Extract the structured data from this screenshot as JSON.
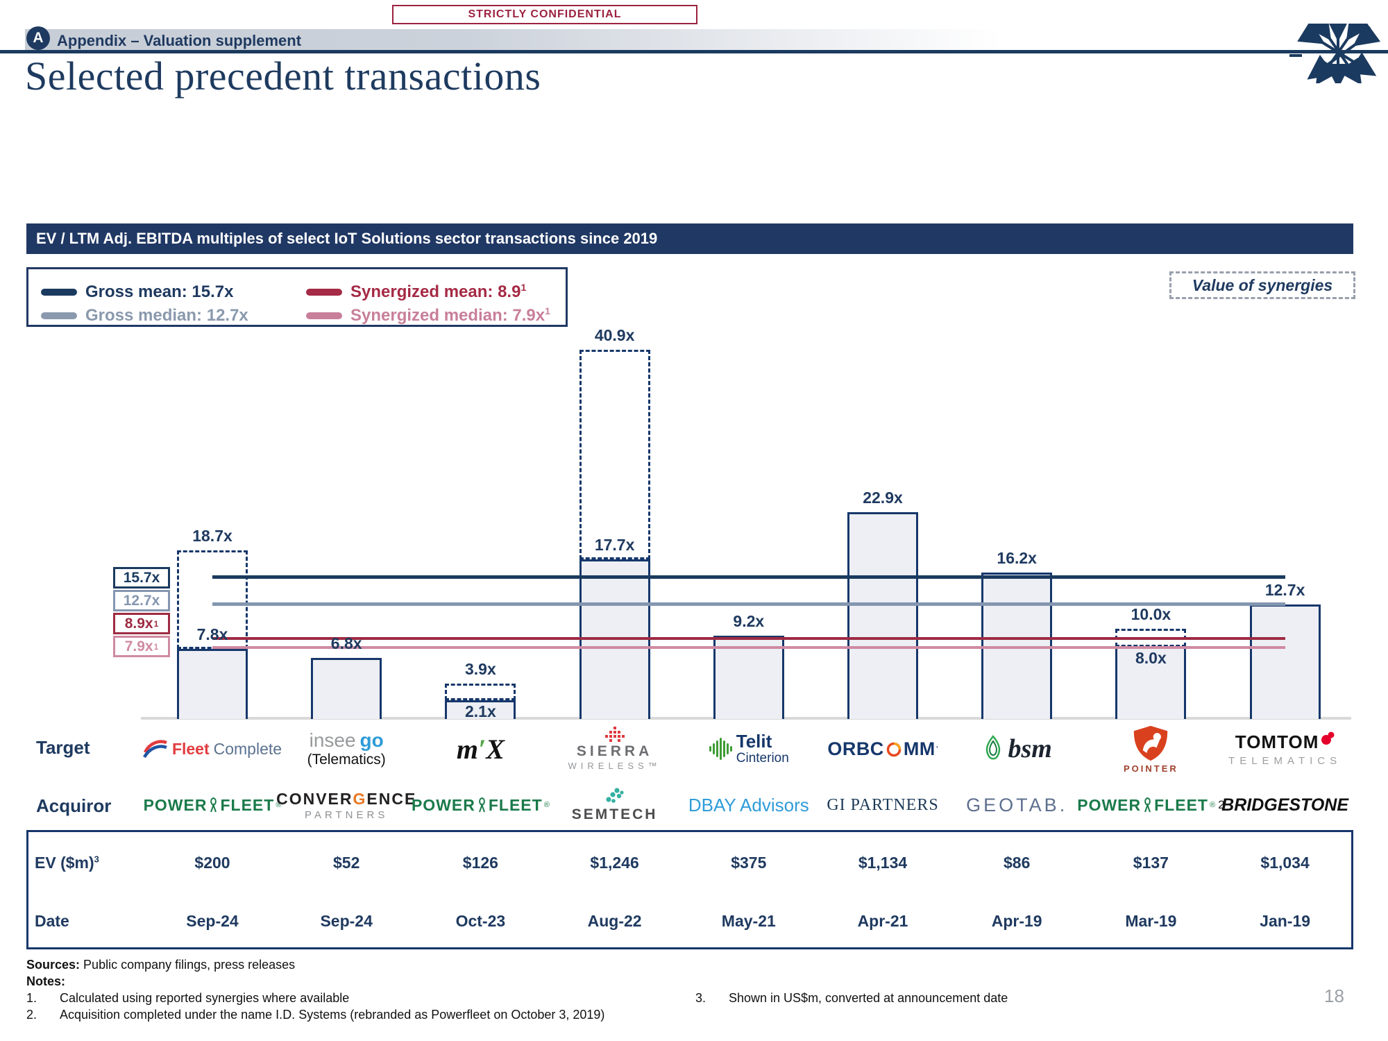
{
  "page": {
    "confidential": "STRICTLY CONFIDENTIAL",
    "section_badge": "A",
    "section_title": "Appendix – Valuation supplement",
    "title": "Selected precedent transactions",
    "page_number": "18"
  },
  "banner": {
    "text": "EV / LTM Adj. EBITDA multiples of select IoT Solutions sector transactions since 2019"
  },
  "legend": {
    "items": [
      {
        "label": "Gross mean: 15.7x",
        "sup": "",
        "color": "#1b3a5f"
      },
      {
        "label": "Gross median: 12.7x",
        "sup": "",
        "color": "#8a99ad"
      },
      {
        "label": "Synergized mean: 8.9",
        "sup": "1",
        "color": "#a52a45"
      },
      {
        "label": "Synergized median: 7.9x",
        "sup": "1",
        "color": "#c87f99"
      }
    ]
  },
  "synergies_box": {
    "label": "Value of synergies"
  },
  "chart_data": {
    "type": "bar",
    "title": "EV / LTM Adj. EBITDA multiples of select IoT Solutions sector transactions since 2019",
    "ylabel": "EV / LTM Adj. EBITDA (x)",
    "ylim": [
      0,
      42
    ],
    "reference_lines": [
      {
        "name": "Gross mean",
        "value": 15.7,
        "label": "15.7x",
        "sup": "",
        "color": "#1b3a5f"
      },
      {
        "name": "Gross median",
        "value": 12.7,
        "label": "12.7x",
        "sup": "",
        "color": "#8496b0"
      },
      {
        "name": "Synergized mean",
        "value": 8.9,
        "label": "8.9x",
        "sup": "1",
        "color": "#9e2b43"
      },
      {
        "name": "Synergized median",
        "value": 7.9,
        "label": "7.9x",
        "sup": "1",
        "color": "#cf8aa2"
      }
    ],
    "deals": [
      {
        "target": "Fleet Complete",
        "acquiror": "PowerFleet",
        "gross_multiple": 7.8,
        "solid_label": "7.8x",
        "dashed_multiple": 18.7,
        "dashed_label": "18.7x",
        "ev": "$200",
        "date": "Sep-24",
        "target_logo": "fleet-complete",
        "acquiror_logo": "powerfleet"
      },
      {
        "target": "Inseego (Telematics)",
        "acquiror": "Convergence Partners",
        "gross_multiple": 6.8,
        "solid_label": "6.8x",
        "dashed_multiple": null,
        "dashed_label": "",
        "ev": "$52",
        "date": "Sep-24",
        "target_logo": "inseego",
        "acquiror_logo": "convergence-partners"
      },
      {
        "target": "MiX Telematics",
        "acquiror": "PowerFleet",
        "gross_multiple": 2.1,
        "solid_label": "2.1x",
        "dashed_multiple": 3.9,
        "dashed_label": "3.9x",
        "ev": "$126",
        "date": "Oct-23",
        "target_logo": "mix",
        "acquiror_logo": "powerfleet"
      },
      {
        "target": "Sierra Wireless",
        "acquiror": "Semtech",
        "gross_multiple": 17.7,
        "solid_label": "17.7x",
        "dashed_multiple": 40.9,
        "dashed_label": "40.9x",
        "ev": "$1,246",
        "date": "Aug-22",
        "target_logo": "sierra-wireless",
        "acquiror_logo": "semtech"
      },
      {
        "target": "Telit Cinterion",
        "acquiror": "DBAY Advisors",
        "gross_multiple": 9.2,
        "solid_label": "9.2x",
        "dashed_multiple": null,
        "dashed_label": "",
        "ev": "$375",
        "date": "May-21",
        "target_logo": "telit-cinterion",
        "acquiror_logo": "dbay-advisors"
      },
      {
        "target": "ORBCOMM",
        "acquiror": "GI Partners",
        "gross_multiple": 22.9,
        "solid_label": "22.9x",
        "dashed_multiple": null,
        "dashed_label": "",
        "ev": "$1,134",
        "date": "Apr-21",
        "target_logo": "orbcomm",
        "acquiror_logo": "gi-partners"
      },
      {
        "target": "BSM Technologies",
        "acquiror": "Geotab",
        "gross_multiple": 16.2,
        "solid_label": "16.2x",
        "dashed_multiple": null,
        "dashed_label": "",
        "ev": "$86",
        "date": "Apr-19",
        "target_logo": "bsm",
        "acquiror_logo": "geotab"
      },
      {
        "target": "Pointer Telocation",
        "acquiror": "PowerFleet",
        "gross_multiple": 8.0,
        "solid_label": "8.0x",
        "dashed_multiple": 10.0,
        "dashed_label": "10.0x",
        "ev": "$137",
        "date": "Mar-19",
        "target_logo": "pointer",
        "acquiror_logo": "powerfleet-2"
      },
      {
        "target": "TomTom Telematics",
        "acquiror": "Bridgestone",
        "gross_multiple": 12.7,
        "solid_label": "12.7x",
        "dashed_multiple": null,
        "dashed_label": "",
        "ev": "$1,034",
        "date": "Jan-19",
        "target_logo": "tomtom-telematics",
        "acquiror_logo": "bridgestone"
      }
    ]
  },
  "rows": {
    "target_label": "Target",
    "acquiror_label": "Acquiror",
    "ev_label": "EV ($m)",
    "ev_sup": "3",
    "date_label": "Date"
  },
  "logos": {
    "fleet-complete": {
      "part1": "Fleet",
      "part2": "Complete"
    },
    "inseego": {
      "part1": "insee",
      "part2": "go",
      "sub": "(Telematics)"
    },
    "mix": {
      "part1": "m",
      "accent": "′",
      "part2": "X"
    },
    "sierra-wireless": {
      "line1": "SIERRA",
      "line2": "WIRELESS™"
    },
    "telit-cinterion": {
      "line1": "Telit",
      "line2": "Cinterion"
    },
    "orbcomm": {
      "part1": "ORBC",
      "part2": "MM",
      "tm": "’"
    },
    "bsm": {
      "text": "bsm"
    },
    "pointer": {
      "sub": "POINTER"
    },
    "tomtom-telematics": {
      "line1": "TOMTOM",
      "line2": "TELEMATICS"
    },
    "powerfleet": {
      "part1": "POWER",
      "part2": "FLEET",
      "reg": "®"
    },
    "powerfleet-2": {
      "part1": "POWER",
      "part2": "FLEET",
      "reg": "®",
      "sup": "2"
    },
    "convergence-partners": {
      "part1": "CONVER",
      "accent": "G",
      "part2": "ENCE",
      "sub": "PARTNERS"
    },
    "semtech": {
      "text": "SEMTECH"
    },
    "dbay-advisors": {
      "text": "DBAY Advisors"
    },
    "gi-partners": {
      "text": "GI PARTNERS"
    },
    "geotab": {
      "text": "GEOTAB."
    },
    "bridgestone": {
      "text": "BRIDGESTONE"
    }
  },
  "footer": {
    "sources_label": "Sources:",
    "sources_text": "Public company filings, press releases",
    "notes_label": "Notes:",
    "note1_num": "1.",
    "note1_text": "Calculated using reported synergies where available",
    "note2_num": "2.",
    "note2_text": "Acquisition completed under the name I.D. Systems (rebranded as Powerfleet on October 3, 2019)",
    "note3_num": "3.",
    "note3_text": "Shown in US$m, converted at announcement date"
  }
}
